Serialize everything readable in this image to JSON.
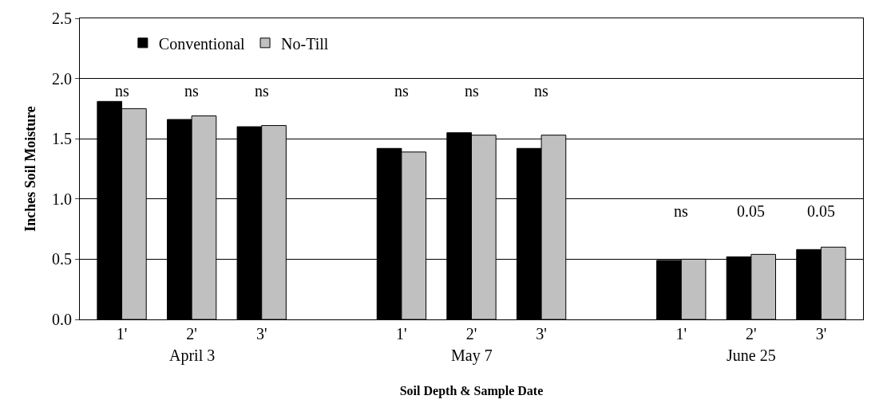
{
  "chart_data": {
    "type": "bar",
    "xlabel": "Soil Depth & Sample Date",
    "ylabel": "Inches Soil Moisture",
    "categories": [
      "1'",
      "2'",
      "3'",
      null,
      "1'",
      "2'",
      "3'",
      null,
      "1'",
      "2'",
      "3'"
    ],
    "series": [
      {
        "name": "Conventional",
        "color": "#000000",
        "values": [
          1.81,
          1.66,
          1.6,
          null,
          1.42,
          1.55,
          1.42,
          null,
          0.49,
          0.52,
          0.58
        ]
      },
      {
        "name": "No-Till",
        "color": "#c0c0c0",
        "values": [
          1.75,
          1.69,
          1.61,
          null,
          1.39,
          1.53,
          1.53,
          null,
          0.5,
          0.54,
          0.6
        ]
      }
    ],
    "ylim": [
      0,
      2.5
    ],
    "yticks": [
      {
        "value": 0,
        "label": "0.0"
      },
      {
        "value": 0.5,
        "label": "0.5"
      },
      {
        "value": 1,
        "label": "1.0"
      },
      {
        "value": 1.5,
        "label": "1.5"
      },
      {
        "value": 2,
        "label": "2.0"
      },
      {
        "value": 2.5,
        "label": "2.5"
      }
    ],
    "grid": "y",
    "legend": "top left",
    "annotations": [
      "April 3",
      "May 7",
      "June 25",
      "ns",
      "ns",
      "ns",
      "ns",
      "ns",
      "ns",
      "ns",
      "0.05",
      "0.05"
    ]
  }
}
